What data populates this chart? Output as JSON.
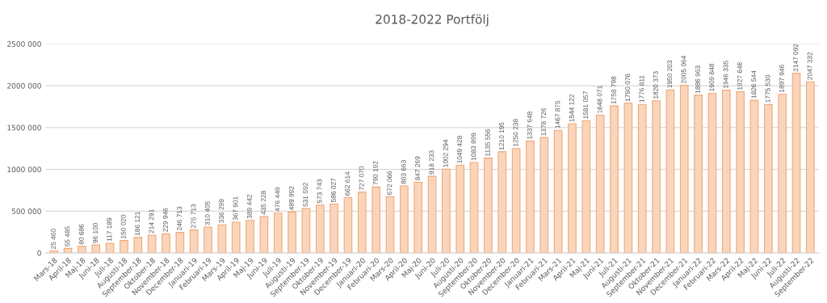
{
  "chart_data": {
    "type": "bar",
    "title": "2018-2022 Portfölj",
    "categories": [
      "Mars-18",
      "April-18",
      "Maj-18",
      "Juni-18",
      "Juli-18",
      "Augusti-18",
      "September-18",
      "Oktober-18",
      "November-18",
      "December-18",
      "Januari-19",
      "Februari-19",
      "Mars-19",
      "April-19",
      "Maj-19",
      "Juni-19",
      "Juli-19",
      "Augusti-19",
      "September-19",
      "Oktober-19",
      "November-19",
      "December-19",
      "Januari-20",
      "Februari-20",
      "Mars-20",
      "April-20",
      "Maj-20",
      "Juni-20",
      "Juli-20",
      "Augusti-20",
      "September-20",
      "Oktober-20",
      "November-20",
      "December-20",
      "Januari-21",
      "Februari-21",
      "Mars-21",
      "April-21",
      "Maj-21",
      "Juni-21",
      "Juli-21",
      "Augusti-21",
      "September-21",
      "Oktober-21",
      "November-21",
      "December-21",
      "Januari-22",
      "Februari-22",
      "Mars-22",
      "April-22",
      "Maj-22",
      "Juni-22",
      "Juli-22",
      "Augusti-22",
      "September-22"
    ],
    "values": [
      25460,
      55485,
      80686,
      96100,
      117189,
      150020,
      186121,
      214291,
      229946,
      246713,
      275713,
      310405,
      336299,
      367901,
      389442,
      435228,
      476449,
      489992,
      531592,
      573743,
      586027,
      662614,
      727070,
      790192,
      672066,
      803663,
      847269,
      918233,
      1002294,
      1049428,
      1083899,
      1135556,
      1210195,
      1250238,
      1337648,
      1378726,
      1467875,
      1544122,
      1581057,
      1648071,
      1758798,
      1790076,
      1776811,
      1820373,
      1950203,
      2005064,
      1886963,
      1909848,
      1946335,
      1927646,
      1826544,
      1775530,
      1897946,
      2147092,
      2047332
    ],
    "value_labels": [
      "25 460",
      "55 485",
      "80 686",
      "96 100",
      "117 189",
      "150 020",
      "186 121",
      "214 291",
      "229 946",
      "246 713",
      "275 713",
      "310 405",
      "336 299",
      "367 901",
      "389 442",
      "435 228",
      "476 449",
      "489 992",
      "531 592",
      "573 743",
      "586 027",
      "662 614",
      "727 070",
      "790 192",
      "672 066",
      "803 663",
      "847 269",
      "918 233",
      "1002 294",
      "1049 428",
      "1083 899",
      "1135 556",
      "1210 195",
      "1250 238",
      "1337 648",
      "1378 726",
      "1467 875",
      "1544 122",
      "1581 057",
      "1648 071",
      "1758 798",
      "1790 076",
      "1776 811",
      "1820 373",
      "1950 203",
      "2005 064",
      "1886 963",
      "1909 848",
      "1946 335",
      "1927 646",
      "1826 544",
      "1775 530",
      "1897 946",
      "2147 092",
      "2047 332"
    ],
    "color": "#fbd5bb",
    "ylim": [
      0,
      2500000
    ],
    "yticks": [
      {
        "value": 0,
        "label": "0"
      },
      {
        "value": 500000,
        "label": "500 000"
      },
      {
        "value": 1000000,
        "label": "1000 000"
      },
      {
        "value": 1500000,
        "label": "1500 000"
      },
      {
        "value": 2000000,
        "label": "2000 000"
      },
      {
        "value": 2500000,
        "label": "2500 000"
      }
    ],
    "grid": "y",
    "legend": false
  }
}
